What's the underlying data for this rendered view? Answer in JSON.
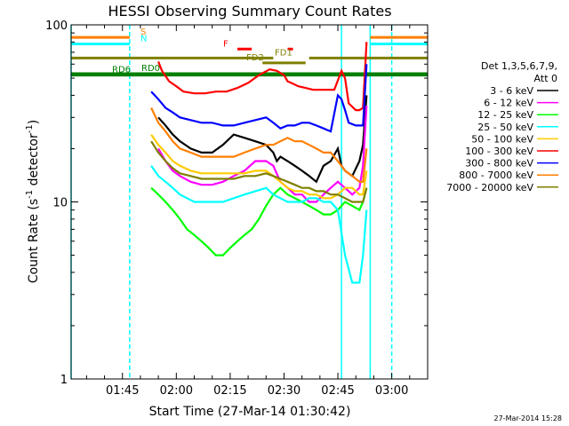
{
  "chart_data": {
    "type": "line",
    "title": "HESSI Observing Summary Count Rates",
    "xlabel": "Start Time (27-Mar-14 01:30:42)",
    "ylabel_main": "Count Rate (s",
    "ylabel_sup": "-1",
    "ylabel_mid": " detector",
    "ylabel_end": ")",
    "yscale": "log",
    "ylim": [
      1,
      100
    ],
    "x_ticks": [
      "01:45",
      "02:00",
      "02:15",
      "02:30",
      "02:45",
      "03:00"
    ],
    "x_tick_minutes": [
      105,
      120,
      135,
      150,
      165,
      180
    ],
    "xlim_minutes": [
      90.7,
      190
    ],
    "y_ticks": [
      "1",
      "10",
      "100"
    ],
    "legend_header": [
      "Det 1,3,5,6,7,9,",
      "Att 0"
    ],
    "legend_placement": "right",
    "series": [
      {
        "name": "3 - 6 keV",
        "color": "#000000",
        "x": [
          115,
          117,
          119,
          121,
          124,
          127,
          130,
          133,
          136,
          139,
          142,
          145,
          147,
          148,
          149,
          151,
          153,
          155,
          157,
          159,
          161,
          163,
          165,
          166,
          167,
          169,
          171,
          172,
          173
        ],
        "y": [
          30,
          27,
          24,
          22,
          20,
          19,
          19,
          21,
          24,
          23,
          22,
          21,
          19,
          17,
          18,
          17,
          16,
          15,
          14,
          13,
          16,
          17,
          20,
          16,
          15,
          14,
          17,
          21,
          40
        ]
      },
      {
        "name": "6 - 12 keV",
        "color": "#ff00ff",
        "x": [
          115,
          117,
          119,
          121,
          124,
          127,
          130,
          133,
          136,
          139,
          142,
          145,
          147,
          149,
          151,
          153,
          155,
          157,
          159,
          161,
          163,
          165,
          167,
          169,
          171,
          172,
          173
        ],
        "y": [
          20,
          17,
          15,
          14,
          13,
          12.5,
          12.5,
          13,
          14,
          15,
          17,
          17,
          16,
          13,
          12,
          11,
          11,
          10,
          10,
          11,
          12,
          13,
          12,
          11,
          12,
          16,
          35
        ]
      },
      {
        "name": "12 - 25 keV",
        "color": "#00ff00",
        "x": [
          113,
          115,
          117,
          119,
          121,
          123,
          125,
          127,
          129,
          131,
          133,
          135,
          137,
          139,
          141,
          143,
          145,
          147,
          149,
          151,
          153,
          155,
          157,
          159,
          161,
          163,
          165,
          167,
          169,
          171,
          172,
          173
        ],
        "y": [
          12,
          11,
          10,
          9,
          8,
          7,
          6.5,
          6,
          5.5,
          5,
          5,
          5.5,
          6,
          6.5,
          7,
          8,
          9.5,
          11,
          12,
          11,
          10.5,
          10,
          9.5,
          9,
          8.5,
          8.5,
          9,
          10,
          9.5,
          9,
          10,
          12
        ]
      },
      {
        "name": "25 - 50 keV",
        "color": "#00ffff",
        "x": [
          113,
          115,
          117,
          119,
          121,
          123,
          125,
          127,
          130,
          133,
          136,
          139,
          142,
          145,
          147,
          149,
          151,
          153,
          155,
          157,
          159,
          161,
          163,
          165,
          167,
          169,
          171,
          172,
          173
        ],
        "y": [
          16,
          14,
          13,
          12,
          11,
          10.5,
          10,
          10,
          10,
          10,
          10.5,
          11,
          11.5,
          12,
          11,
          10.5,
          10,
          10,
          10,
          10.5,
          10.5,
          10,
          10,
          9,
          5,
          3.5,
          3.5,
          5,
          9
        ]
      },
      {
        "name": "50 - 100 keV",
        "color": "#ffcc00",
        "x": [
          113,
          115,
          117,
          119,
          121,
          124,
          127,
          130,
          133,
          136,
          139,
          142,
          145,
          147,
          149,
          151,
          153,
          155,
          157,
          159,
          161,
          163,
          165,
          167,
          169,
          171,
          172,
          173
        ],
        "y": [
          24,
          21,
          19,
          17,
          16,
          15,
          14.5,
          14.5,
          14.5,
          14.5,
          14.5,
          15,
          15,
          14,
          13,
          12,
          11.5,
          11.5,
          11,
          11,
          10.5,
          10.5,
          11,
          12,
          12,
          11,
          11,
          15
        ]
      },
      {
        "name": "100 - 300 keV",
        "color": "#ff0000",
        "x": [
          115,
          116,
          118,
          120,
          122,
          125,
          128,
          131,
          134,
          137,
          140,
          143,
          146,
          148,
          150,
          151,
          152,
          154,
          156,
          158,
          160,
          162,
          164,
          166,
          167,
          168,
          170,
          171,
          172,
          173
        ],
        "y": [
          62,
          55,
          48,
          45,
          42,
          41,
          41,
          42,
          42,
          44,
          47,
          52,
          56,
          55,
          52,
          48,
          47,
          45,
          44,
          43,
          43,
          43,
          43,
          55,
          50,
          36,
          33,
          33,
          34,
          80
        ]
      },
      {
        "name": "300 - 800 keV",
        "color": "#0000ff",
        "x": [
          113,
          115,
          117,
          119,
          121,
          124,
          127,
          130,
          133,
          136,
          139,
          142,
          145,
          147,
          149,
          151,
          153,
          155,
          157,
          159,
          161,
          163,
          165,
          166,
          167,
          168,
          170,
          171,
          172,
          173
        ],
        "y": [
          42,
          38,
          34,
          32,
          30,
          29,
          28,
          28,
          27,
          27,
          28,
          29,
          30,
          28,
          26,
          27,
          27,
          28,
          28,
          27,
          26,
          25,
          40,
          38,
          33,
          28,
          27,
          27,
          27,
          60
        ]
      },
      {
        "name": "800 - 7000 keV",
        "color": "#ff7f00",
        "x": [
          113,
          115,
          117,
          119,
          121,
          124,
          127,
          130,
          133,
          136,
          139,
          142,
          145,
          147,
          149,
          151,
          153,
          155,
          157,
          159,
          161,
          163,
          165,
          167,
          169,
          171,
          172,
          173
        ],
        "y": [
          34,
          28,
          25,
          22,
          20,
          19,
          18,
          18,
          18,
          18,
          19,
          20,
          21,
          21,
          22,
          23,
          22,
          22,
          21,
          20,
          19,
          19,
          17,
          15,
          14,
          13,
          13,
          20
        ]
      },
      {
        "name": "7000 - 20000 keV",
        "color": "#7f7f00",
        "x": [
          113,
          115,
          117,
          119,
          121,
          124,
          127,
          130,
          133,
          136,
          139,
          142,
          145,
          147,
          149,
          151,
          153,
          155,
          157,
          159,
          161,
          163,
          165,
          167,
          169,
          171,
          172,
          173
        ],
        "y": [
          22,
          19,
          17,
          15.5,
          14.5,
          14,
          13.5,
          13.5,
          13.5,
          13.5,
          14,
          14,
          14.5,
          14,
          13.5,
          13,
          12.5,
          12,
          12,
          11.5,
          11.5,
          11,
          11,
          10.5,
          10,
          10,
          10,
          12
        ]
      }
    ],
    "flags": [
      {
        "label": "S",
        "color": "#ff7f00",
        "segments": [
          [
            90.7,
            107
          ],
          [
            174,
            190
          ]
        ],
        "y": 85
      },
      {
        "label": "N",
        "color": "#00ffff",
        "segments": [
          [
            90.7,
            107
          ],
          [
            174,
            190
          ]
        ],
        "y": 78
      },
      {
        "label": "F",
        "color": "#ff0000",
        "segments": [
          [
            137,
            141
          ],
          [
            151,
            152.5
          ]
        ],
        "y": 73
      },
      {
        "label": "FD1",
        "color": "#7f7f00",
        "segments": [
          [
            90.7,
            147
          ],
          [
            157,
            190
          ]
        ],
        "y": 65
      },
      {
        "label": "FD2",
        "color": "#7f7f00",
        "segments": [
          [
            144,
            156
          ]
        ],
        "y": 61
      },
      {
        "label": "RD0",
        "color": "#007f00",
        "segments": [
          [
            90.7,
            190
          ]
        ],
        "y": 53
      },
      {
        "label": "RD6",
        "color": "#007f00",
        "segments": [
          [
            90.7,
            190
          ]
        ],
        "y": 52
      }
    ],
    "vlines": [
      {
        "color": "#00ffff",
        "x": 90.7,
        "style": "solid"
      },
      {
        "color": "#00ffff",
        "x": 107,
        "style": "dashed"
      },
      {
        "color": "#00ffff",
        "x": 166,
        "style": "solid"
      },
      {
        "color": "#00ffff",
        "x": 174,
        "style": "solid"
      },
      {
        "color": "#00ffff",
        "x": 180,
        "style": "dashed"
      }
    ]
  },
  "footer_timestamp": "27-Mar-2014 15:28"
}
